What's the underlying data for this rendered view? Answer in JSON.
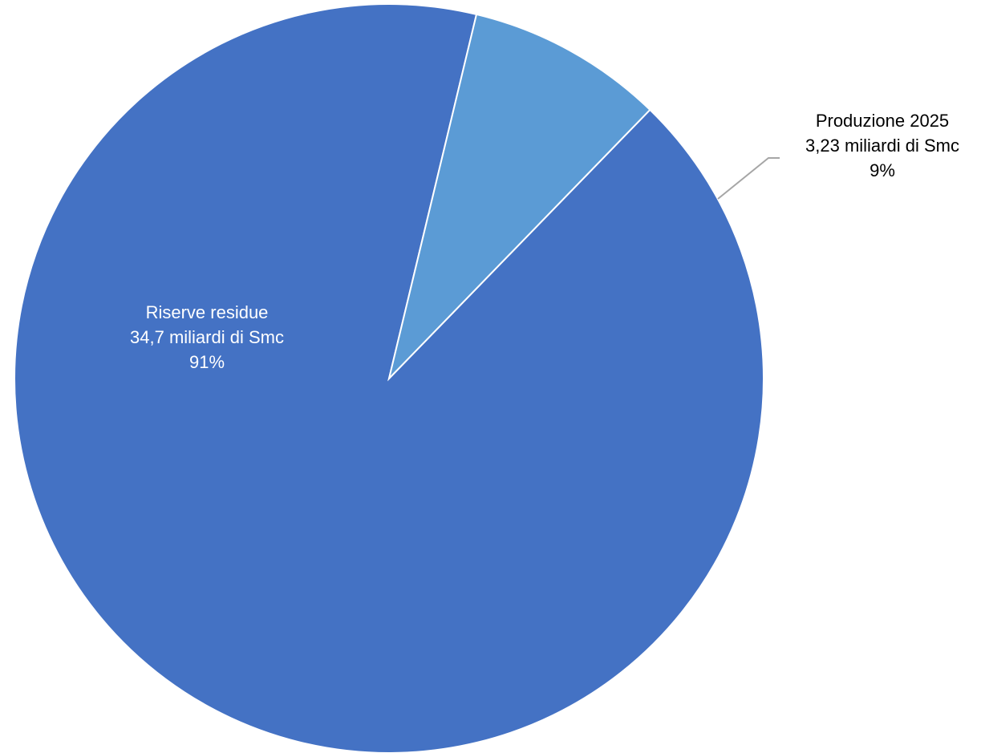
{
  "chart_data": {
    "type": "pie",
    "title": "",
    "slices": [
      {
        "name": "Riserve residue",
        "value": 34.7,
        "value_label": "34,7 miliardi di Smc",
        "percent_label": "91%",
        "color": "#4472C4",
        "label_color": "#FFFFFF"
      },
      {
        "name": "Produzione 2025",
        "value": 3.23,
        "value_label": "3,23 miliardi di Smc",
        "percent_label": "9%",
        "color": "#5B9BD5",
        "label_color": "#000000"
      }
    ],
    "start_angle_deg": 76.5,
    "direction": "counterclockwise",
    "leader_line_color": "#A6A6A6"
  }
}
